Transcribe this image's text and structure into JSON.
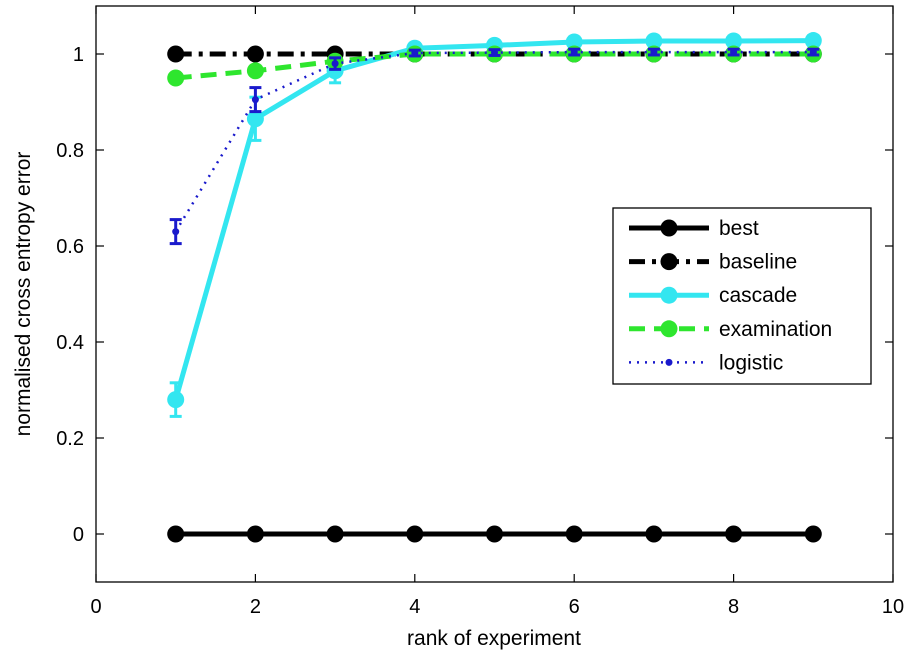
{
  "chart_data": {
    "type": "line",
    "xlabel": "rank of experiment",
    "ylabel": "normalised cross entropy error",
    "xlim": [
      0,
      10
    ],
    "ylim": [
      -0.1,
      1.1
    ],
    "xticks": [
      0,
      2,
      4,
      6,
      8,
      10
    ],
    "yticks": [
      0,
      0.2,
      0.4,
      0.6,
      0.8,
      1
    ],
    "x_tick_labels": [
      "0",
      "2",
      "4",
      "6",
      "8",
      "10"
    ],
    "y_tick_labels": [
      "0",
      "0.2",
      "0.4",
      "0.6",
      "0.8",
      "1"
    ],
    "grid": false,
    "legend_position": "right",
    "x": [
      1,
      2,
      3,
      4,
      5,
      6,
      7,
      8,
      9
    ],
    "series": [
      {
        "name": "best",
        "color": "#000000",
        "line": "solid",
        "marker": "circle",
        "values": [
          0,
          0,
          0,
          0,
          0,
          0,
          0,
          0,
          0
        ]
      },
      {
        "name": "baseline",
        "color": "#000000",
        "line": "dashdot",
        "marker": "circle",
        "values": [
          1,
          1,
          1,
          1,
          1,
          1,
          1,
          1,
          1
        ]
      },
      {
        "name": "cascade",
        "color": "#33e6f0",
        "line": "solid",
        "marker": "circle",
        "values": [
          0.28,
          0.865,
          0.965,
          1.012,
          1.018,
          1.025,
          1.027,
          1.027,
          1.028
        ],
        "errors": [
          0.035,
          0.045,
          0.025,
          0.01,
          0.01,
          0.01,
          0.01,
          0.01,
          0.01
        ]
      },
      {
        "name": "examination",
        "color": "#2ee62e",
        "line": "dashed",
        "marker": "circle",
        "values": [
          0.95,
          0.965,
          0.985,
          1.0,
          1.0,
          1.0,
          1.0,
          1.0,
          1.0
        ]
      },
      {
        "name": "logistic",
        "color": "#1a1acc",
        "line": "dotted",
        "marker": "dot",
        "values": [
          0.63,
          0.905,
          0.98,
          1.002,
          1.003,
          1.004,
          1.004,
          1.004,
          1.004
        ],
        "errors": [
          0.025,
          0.025,
          0.012,
          0.006,
          0.006,
          0.006,
          0.006,
          0.006,
          0.006
        ]
      }
    ]
  }
}
